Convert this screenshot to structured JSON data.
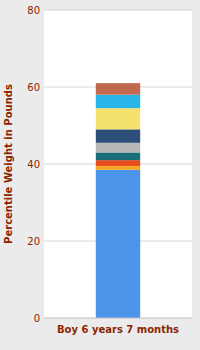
{
  "chart_data": {
    "type": "bar",
    "stacked": true,
    "ylabel": "Percentile Weight in Pounds",
    "categories": [
      "Boy 6 years 7 months"
    ],
    "series": [
      {
        "color": "#4d94eb",
        "values": [
          38.5
        ]
      },
      {
        "color": "#f5a623",
        "values": [
          1.0
        ]
      },
      {
        "color": "#e84c1e",
        "values": [
          1.5
        ]
      },
      {
        "color": "#1a6e7a",
        "values": [
          2.0
        ]
      },
      {
        "color": "#b8b8b8",
        "values": [
          2.5
        ]
      },
      {
        "color": "#2d4f7a",
        "values": [
          3.5
        ]
      },
      {
        "color": "#f5e16e",
        "values": [
          5.5
        ]
      },
      {
        "color": "#29b5e8",
        "values": [
          3.5
        ]
      },
      {
        "color": "#c0694e",
        "values": [
          3.0
        ]
      }
    ],
    "ylim": [
      0,
      80
    ],
    "yticks": [
      0,
      20,
      40,
      60,
      80
    ],
    "grid": true
  }
}
